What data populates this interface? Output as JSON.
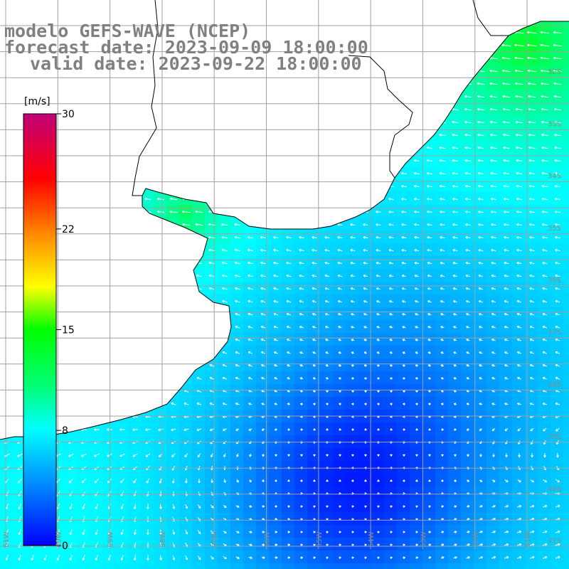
{
  "header": {
    "model": "modelo GEFS-WAVE (NCEP)",
    "forecast": "forecast date: 2023-09-09 18:00:00",
    "valid": "valid date: 2023-09-22 18:00:00"
  },
  "colorbar": {
    "unit": "[m/s]",
    "ticks": [
      {
        "value": 30,
        "label": "30"
      },
      {
        "value": 22,
        "label": "22"
      },
      {
        "value": 15,
        "label": "15"
      },
      {
        "value": 8,
        "label": "8"
      },
      {
        "value": 0,
        "label": "0"
      }
    ],
    "range": [
      0,
      30
    ],
    "colors": [
      "#0000ff",
      "#0080ff",
      "#00d8ff",
      "#00ff80",
      "#00ff00",
      "#ffff00",
      "#ff8000",
      "#ff0000",
      "#c0007a"
    ]
  },
  "map": {
    "land_color": "#ffffff",
    "coastline_color": "#000000",
    "grid_color": "#a0a0a0",
    "arrow_color": "#ffffff",
    "lat_labels": [
      "32S",
      "33S",
      "34S",
      "35S",
      "36S",
      "37S",
      "38S",
      "39S",
      "40S",
      "41S"
    ],
    "lon_labels": [
      "61W",
      "60W",
      "59W",
      "58W",
      "57W",
      "56W",
      "55W",
      "54W",
      "53W",
      "52W",
      "51W"
    ]
  }
}
